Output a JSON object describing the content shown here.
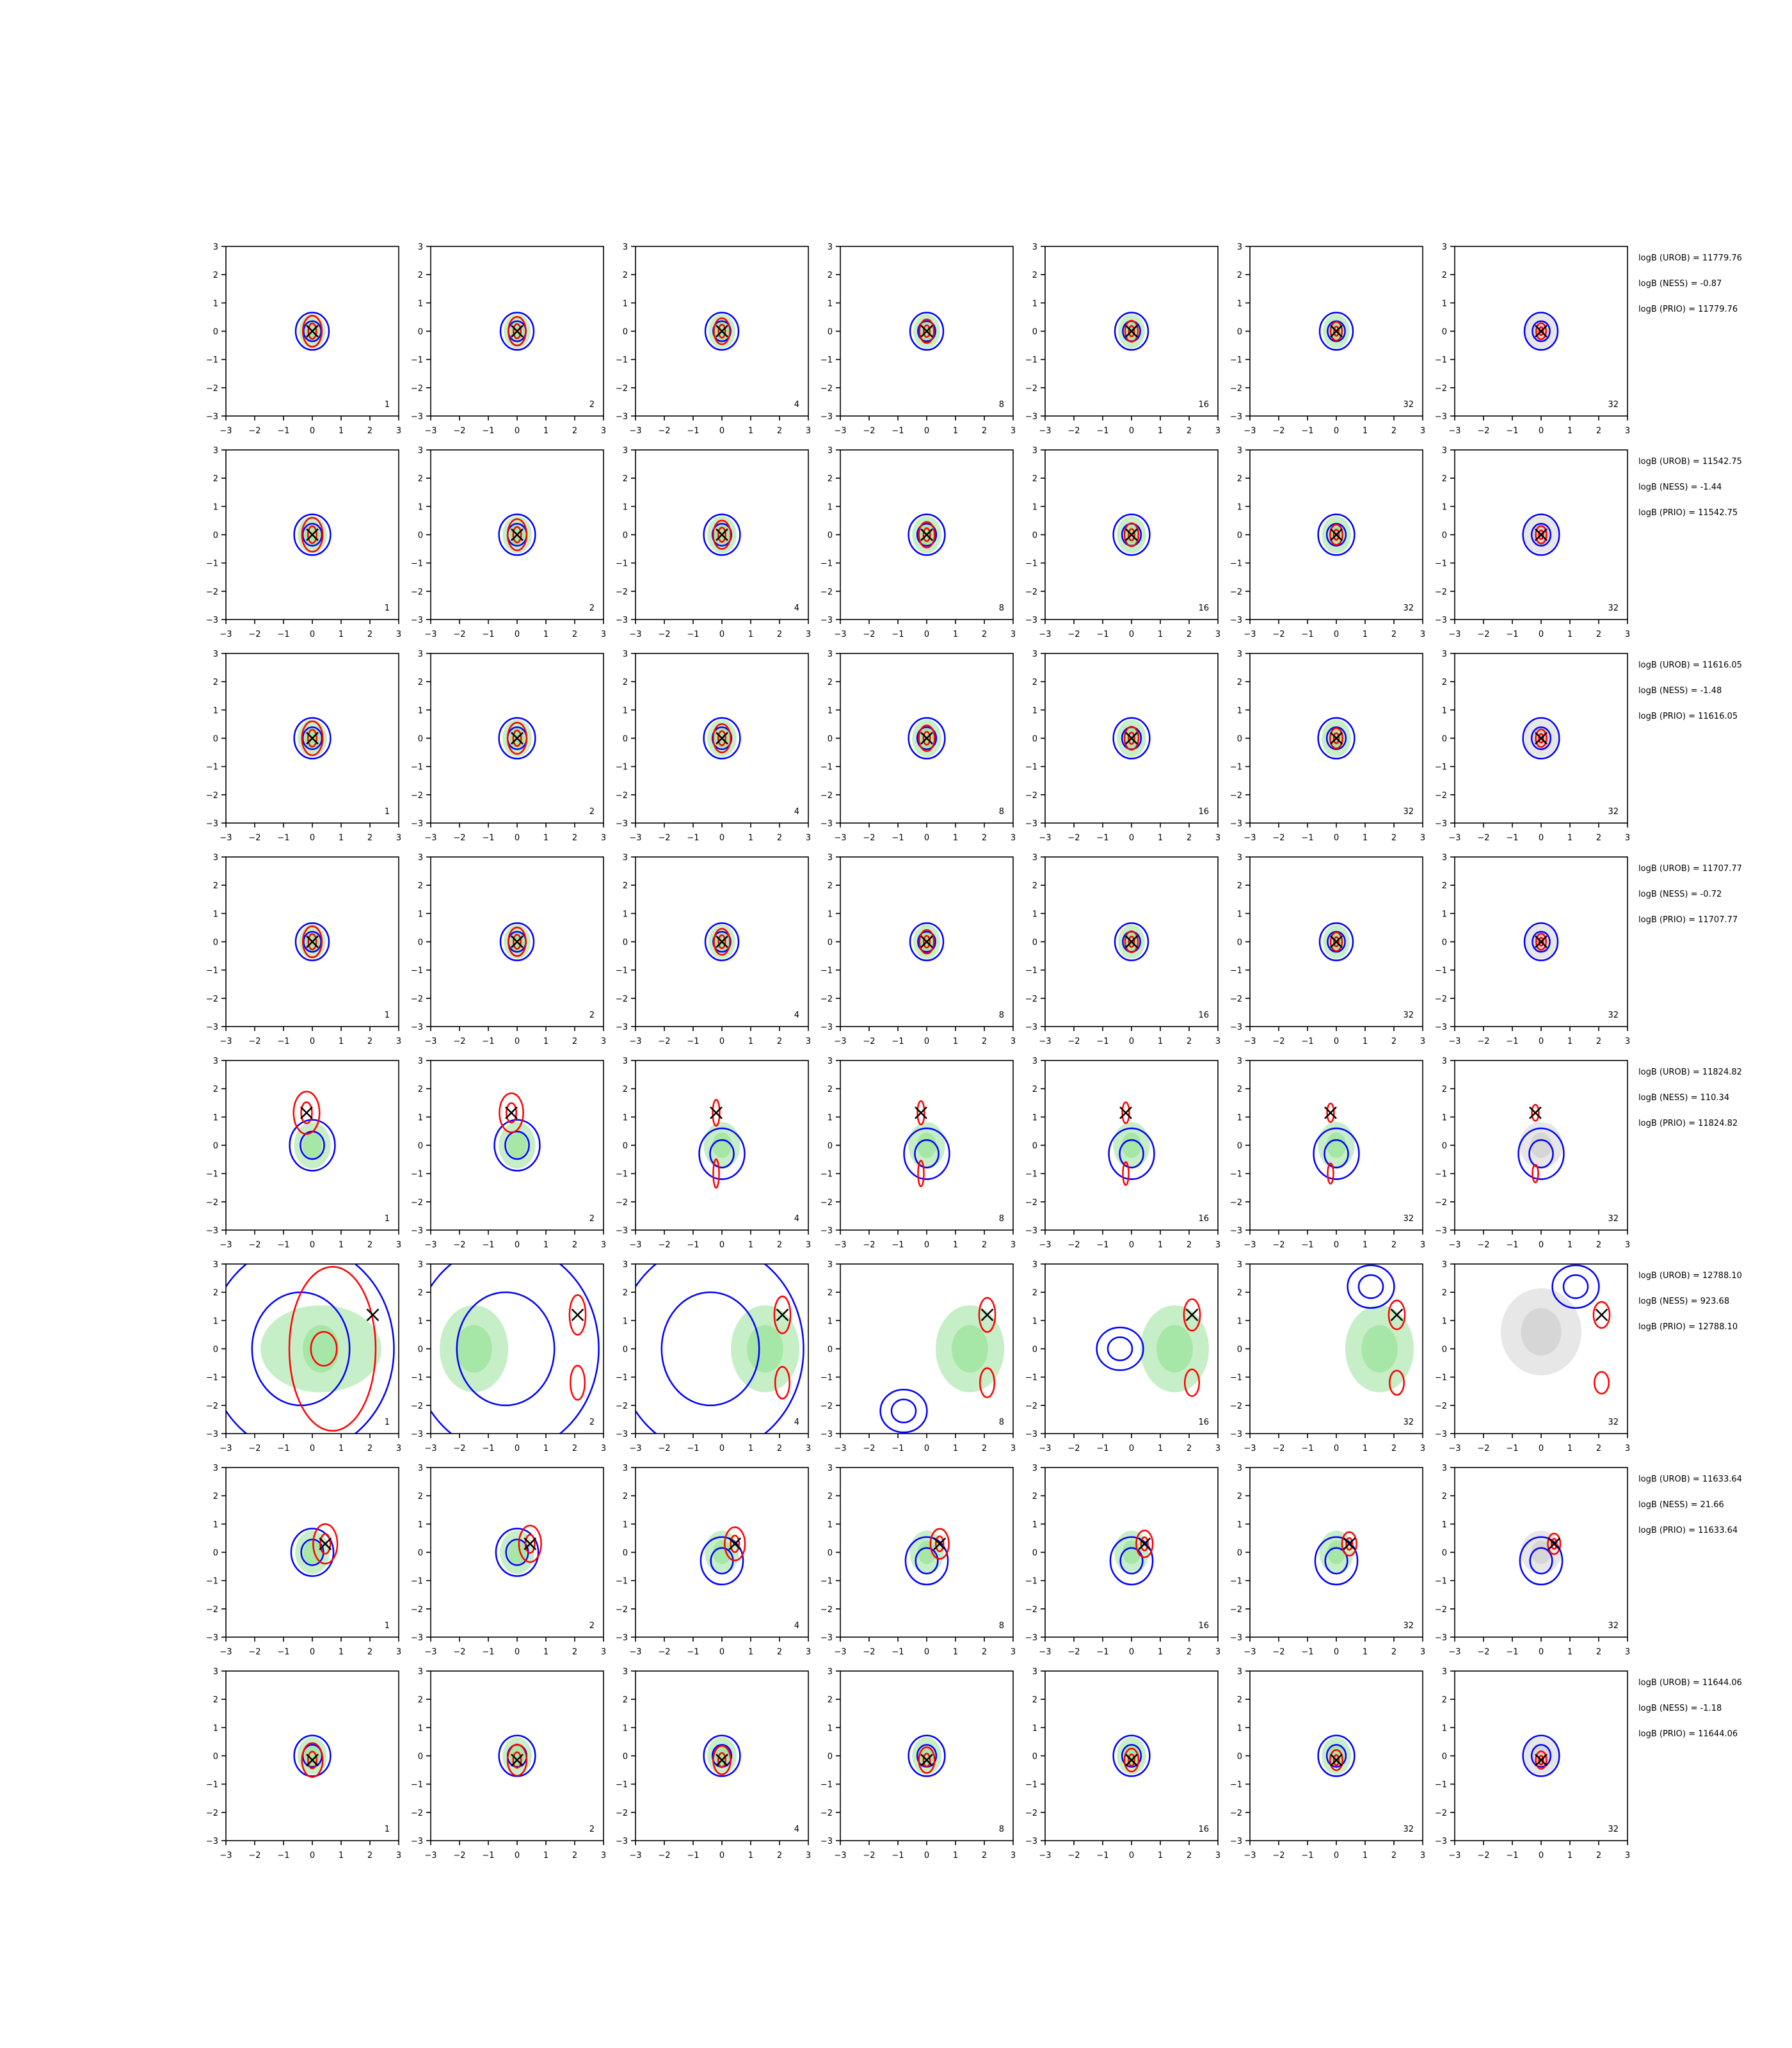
{
  "colors": {
    "prior_fill": "#cfcfcf",
    "posterior_fill": "#90e090",
    "blue_contour": "#0000ff",
    "red_contour": "#ff0000",
    "marker": "#000000",
    "axes": "#000000"
  },
  "axis": {
    "xlim": [
      -3,
      3
    ],
    "ylim": [
      -3,
      3
    ],
    "ticks": [
      "−3",
      "−2",
      "−1",
      "0",
      "1",
      "2",
      "3"
    ]
  },
  "columns": [
    "1",
    "2",
    "4",
    "8",
    "16",
    "32",
    "32"
  ],
  "chart_data": {
    "type": "contour-grid",
    "rows": [
      {
        "annotations": [
          "logB (UROB) = 11779.76",
          "logB (NESS) = -0.87",
          "logB (PRIO) = 11779.76"
        ],
        "truth": [
          0,
          0
        ],
        "mode": "centered",
        "spread": 0.55
      },
      {
        "annotations": [
          "logB (UROB) = 11542.75",
          "logB (NESS) = -1.44",
          "logB (PRIO) = 11542.75"
        ],
        "truth": [
          0,
          0
        ],
        "mode": "centered",
        "spread": 0.6
      },
      {
        "annotations": [
          "logB (UROB) = 11616.05",
          "logB (NESS) = -1.48",
          "logB (PRIO) = 11616.05"
        ],
        "truth": [
          0,
          0
        ],
        "mode": "centered",
        "spread": 0.6
      },
      {
        "annotations": [
          "logB (UROB) = 11707.77",
          "logB (NESS) = -0.72",
          "logB (PRIO) = 11707.77"
        ],
        "truth": [
          0,
          0
        ],
        "mode": "centered",
        "spread": 0.55
      },
      {
        "annotations": [
          "logB (UROB) = 11824.82",
          "logB (NESS) = 110.34",
          "logB (PRIO) = 11824.82"
        ],
        "truth": [
          -0.2,
          1.15
        ],
        "mode": "vertical",
        "spread": 0.75
      },
      {
        "annotations": [
          "logB (UROB) = 12788.10",
          "logB (NESS) = 923.68",
          "logB (PRIO) = 12788.10"
        ],
        "truth": [
          2.1,
          1.2
        ],
        "mode": "wild",
        "spread": 1.4
      },
      {
        "annotations": [
          "logB (UROB) = 11633.64",
          "logB (NESS) = 21.66",
          "logB (PRIO) = 11633.64"
        ],
        "truth": [
          0.45,
          0.3
        ],
        "mode": "offset",
        "spread": 0.7
      },
      {
        "annotations": [
          "logB (UROB) = 11644.06",
          "logB (NESS) = -1.18",
          "logB (PRIO) = 11644.06"
        ],
        "truth": [
          0,
          -0.15
        ],
        "mode": "centered",
        "spread": 0.6
      }
    ]
  }
}
